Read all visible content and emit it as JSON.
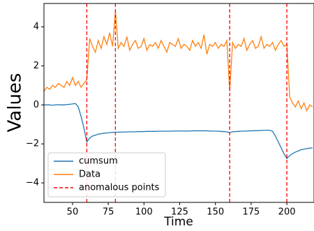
{
  "chart_data": {
    "type": "line",
    "x_label": "Time",
    "y_label": "Values",
    "x": [
      30,
      32,
      34,
      36,
      38,
      40,
      42,
      44,
      46,
      48,
      50,
      52,
      54,
      56,
      58,
      60,
      62,
      64,
      66,
      68,
      70,
      72,
      74,
      76,
      78,
      80,
      82,
      84,
      86,
      88,
      90,
      92,
      94,
      96,
      98,
      100,
      102,
      104,
      106,
      108,
      110,
      112,
      114,
      116,
      118,
      120,
      122,
      124,
      126,
      128,
      130,
      132,
      134,
      136,
      138,
      140,
      142,
      144,
      146,
      148,
      150,
      152,
      154,
      156,
      158,
      160,
      162,
      164,
      166,
      168,
      170,
      172,
      174,
      176,
      178,
      180,
      182,
      184,
      186,
      188,
      190,
      192,
      194,
      196,
      198,
      200,
      202,
      204,
      206,
      208,
      210,
      212,
      214,
      216,
      218
    ],
    "series": [
      {
        "name": "cumsum",
        "color": "#1f77b4",
        "values": [
          0,
          0,
          0,
          -0.02,
          0,
          0.01,
          0,
          0,
          0.02,
          0.03,
          0.05,
          0.07,
          -0.1,
          -0.6,
          -1.2,
          -1.9,
          -1.7,
          -1.6,
          -1.55,
          -1.5,
          -1.48,
          -1.45,
          -1.44,
          -1.42,
          -1.41,
          -1.4,
          -1.4,
          -1.4,
          -1.39,
          -1.39,
          -1.38,
          -1.38,
          -1.38,
          -1.37,
          -1.37,
          -1.37,
          -1.36,
          -1.36,
          -1.36,
          -1.36,
          -1.35,
          -1.35,
          -1.35,
          -1.35,
          -1.35,
          -1.34,
          -1.34,
          -1.34,
          -1.34,
          -1.34,
          -1.34,
          -1.34,
          -1.33,
          -1.33,
          -1.33,
          -1.33,
          -1.33,
          -1.33,
          -1.34,
          -1.34,
          -1.35,
          -1.35,
          -1.36,
          -1.37,
          -1.38,
          -1.42,
          -1.38,
          -1.37,
          -1.36,
          -1.35,
          -1.34,
          -1.34,
          -1.33,
          -1.33,
          -1.32,
          -1.32,
          -1.31,
          -1.3,
          -1.3,
          -1.3,
          -1.35,
          -1.6,
          -1.9,
          -2.2,
          -2.5,
          -2.75,
          -2.6,
          -2.5,
          -2.42,
          -2.36,
          -2.3,
          -2.27,
          -2.24,
          -2.22,
          -2.2
        ]
      },
      {
        "name": "Data",
        "color": "#ff7f0e",
        "values": [
          0.7,
          0.9,
          0.8,
          1.0,
          0.9,
          1.1,
          1.0,
          0.9,
          1.2,
          1.0,
          1.4,
          1.0,
          1.2,
          0.9,
          1.1,
          1.3,
          3.4,
          3.0,
          2.7,
          3.3,
          2.9,
          3.5,
          3.1,
          3.7,
          3.0,
          4.8,
          2.9,
          3.2,
          3.0,
          3.5,
          2.8,
          3.1,
          3.3,
          2.9,
          3.0,
          3.4,
          2.8,
          3.1,
          3.0,
          3.2,
          2.9,
          3.3,
          3.0,
          2.7,
          3.2,
          3.1,
          3.0,
          3.4,
          2.9,
          3.1,
          3.0,
          2.8,
          3.3,
          3.0,
          3.2,
          2.9,
          3.6,
          2.6,
          3.1,
          3.0,
          3.2,
          2.9,
          3.1,
          3.0,
          3.3,
          0.7,
          3.2,
          2.9,
          3.1,
          3.0,
          3.4,
          2.8,
          3.1,
          3.3,
          2.9,
          3.0,
          3.5,
          2.9,
          3.1,
          3.0,
          3.2,
          2.8,
          3.1,
          3.3,
          3.0,
          3.1,
          0.4,
          0.1,
          -0.1,
          0.2,
          -0.2,
          0.1,
          -0.3,
          0.0,
          -0.1
        ]
      }
    ],
    "vlines": {
      "name": "anomalous points",
      "color": "#ff0000",
      "values": [
        60,
        80,
        160,
        200
      ]
    },
    "xlim": [
      30,
      219
    ],
    "ylim": [
      -5,
      5.2
    ],
    "xticks": [
      50,
      75,
      100,
      125,
      150,
      175,
      200
    ],
    "yticks": [
      {
        "value": -4,
        "label": "−4"
      },
      {
        "value": -2,
        "label": "−2"
      },
      0,
      2,
      4
    ],
    "legend": "lower left"
  }
}
